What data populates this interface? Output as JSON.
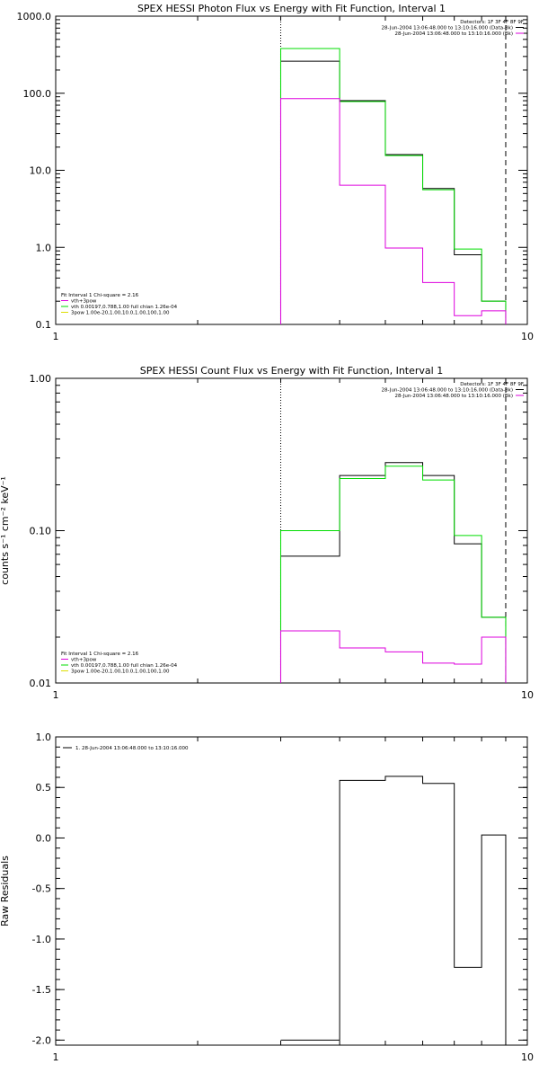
{
  "chart_data": [
    {
      "type": "line",
      "title": "SPEX HESSI Photon Flux vs Energy with Fit Function, Interval 1",
      "xlabel": "",
      "ylabel": "",
      "xscale": "log",
      "yscale": "log",
      "xlim": [
        1,
        10
      ],
      "ylim": [
        0.1,
        1000
      ],
      "x_ticks": [
        "1",
        "10"
      ],
      "y_ticks": [
        "1000.0",
        "100.0",
        "10.0",
        "1.0",
        "0.1"
      ],
      "legend_top": [
        "Detectors: 1F 3F 4F 8F 9F",
        "28-Jun-2004 13:06:48.000 to 13:10:16.000 (Data-Bk)",
        "28-Jun-2004 13:06:48.000 to 13:10:16.000 (Bk)"
      ],
      "legend_bottom": [
        "Fit Interval 1   Chi-square = 2.16",
        "vth+3pow",
        "vth 0.00197,0.788,1.00  full chian 1.26e-04",
        "3pow 1.00e-20,1.00,10.0,1.00,100,1.00"
      ],
      "vlines": [
        {
          "x": 3.0,
          "style": "dotted"
        },
        {
          "x": 9.0,
          "style": "dashed"
        }
      ],
      "bin_edges": [
        3.0,
        4.0,
        5.0,
        6.0,
        7.0,
        8.0,
        9.0
      ],
      "series": [
        {
          "name": "28-Jun-2004 13:06:48.000 to 13:10:16.000 (Data-Bk)",
          "color": "#000000",
          "values": [
            260,
            80,
            16,
            5.8,
            0.8,
            0.2
          ]
        },
        {
          "name": "vth+3pow",
          "color": "#00dd00",
          "values": [
            380,
            78,
            15.5,
            5.6,
            0.95,
            0.2
          ]
        },
        {
          "name": "28-Jun-2004 13:06:48.000 to 13:10:16.000 (Bk)",
          "color": "#dd00dd",
          "values": [
            85,
            6.4,
            0.98,
            0.35,
            0.13,
            0.15
          ]
        }
      ]
    },
    {
      "type": "line",
      "title": "SPEX HESSI Count Flux vs Energy with Fit Function, Interval 1",
      "xlabel": "",
      "ylabel": "counts s⁻¹ cm⁻² keV⁻¹",
      "xscale": "log",
      "yscale": "log",
      "xlim": [
        1,
        10
      ],
      "ylim": [
        0.01,
        1
      ],
      "x_ticks": [
        "1",
        "10"
      ],
      "y_ticks": [
        "1.00",
        "0.10",
        "0.01"
      ],
      "legend_top": [
        "Detectors: 1F 3F 4F 8F 9F",
        "28-Jun-2004 13:06:48.000 to 13:10:16.000 (Data-Bk)",
        "28-Jun-2004 13:06:48.000 to 13:10:16.000 (Bk)"
      ],
      "legend_bottom": [
        "Fit Interval 1   Chi-square = 2.16",
        "vth+3pow",
        "vth 0.00197,0.788,1.00  full chian 1.26e-04",
        "3pow 1.00e-20,1.00,10.0,1.00,100,1.00"
      ],
      "vlines": [
        {
          "x": 3.0,
          "style": "dotted"
        },
        {
          "x": 9.0,
          "style": "dashed"
        }
      ],
      "bin_edges": [
        3.0,
        4.0,
        5.0,
        6.0,
        7.0,
        8.0,
        9.0
      ],
      "series": [
        {
          "name": "28-Jun-2004 13:06:48.000 to 13:10:16.000 (Data-Bk)",
          "color": "#000000",
          "values": [
            0.068,
            0.23,
            0.28,
            0.23,
            0.082,
            0.027
          ]
        },
        {
          "name": "vth+3pow",
          "color": "#00dd00",
          "values": [
            0.1,
            0.22,
            0.265,
            0.215,
            0.093,
            0.027
          ]
        },
        {
          "name": "28-Jun-2004 13:06:48.000 to 13:10:16.000 (Bk)",
          "color": "#dd00dd",
          "values": [
            0.022,
            0.017,
            0.016,
            0.0135,
            0.0133,
            0.02
          ]
        }
      ]
    },
    {
      "type": "line",
      "title": "",
      "xlabel": "",
      "ylabel": "Raw Residuals",
      "xscale": "log",
      "yscale": "linear",
      "xlim": [
        1,
        10
      ],
      "ylim": [
        -2.05,
        1.0
      ],
      "x_ticks": [
        "1",
        "10"
      ],
      "y_ticks": [
        "1.0",
        "0.5",
        "0.0",
        "-0.5",
        "-1.0",
        "-1.5",
        "-2.0"
      ],
      "legend_top": [
        "1. 28-Jun-2004 13:06:48.000 to 13:10:16.000"
      ],
      "bin_edges": [
        3.0,
        4.0,
        5.0,
        6.0,
        7.0,
        8.0,
        9.0
      ],
      "series": [
        {
          "name": "1. 28-Jun-2004 13:06:48.000 to 13:10:16.000",
          "color": "#000000",
          "values": [
            -2.0,
            0.57,
            0.61,
            0.54,
            -1.28,
            0.03
          ]
        }
      ]
    }
  ]
}
